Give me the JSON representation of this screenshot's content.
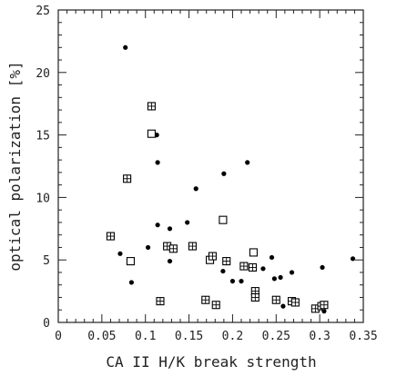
{
  "chart_data": {
    "type": "scatter",
    "xlabel": "CA II H/K break strength",
    "ylabel": "optical polarization [%]",
    "xlim": [
      0,
      0.35
    ],
    "ylim": [
      0,
      25
    ],
    "xticks": [
      "0",
      "0.05",
      "0.1",
      "0.15",
      "0.2",
      "0.25",
      "0.3",
      "0.35"
    ],
    "yticks": [
      "0",
      "5",
      "10",
      "15",
      "20",
      "25"
    ],
    "grid": false,
    "series": [
      {
        "marker": "filled-circle",
        "points": [
          [
            0.077,
            22.0
          ],
          [
            0.113,
            15.0
          ],
          [
            0.114,
            12.8
          ],
          [
            0.114,
            7.8
          ],
          [
            0.128,
            7.5
          ],
          [
            0.158,
            10.7
          ],
          [
            0.19,
            11.9
          ],
          [
            0.217,
            12.8
          ],
          [
            0.148,
            8.0
          ],
          [
            0.103,
            6.0
          ],
          [
            0.071,
            5.5
          ],
          [
            0.084,
            3.2
          ],
          [
            0.128,
            4.9
          ],
          [
            0.189,
            4.1
          ],
          [
            0.2,
            3.3
          ],
          [
            0.21,
            3.3
          ],
          [
            0.235,
            4.3
          ],
          [
            0.245,
            5.2
          ],
          [
            0.248,
            3.5
          ],
          [
            0.255,
            3.6
          ],
          [
            0.268,
            4.0
          ],
          [
            0.258,
            1.3
          ],
          [
            0.303,
            4.4
          ],
          [
            0.305,
            0.9
          ],
          [
            0.338,
            5.1
          ]
        ]
      },
      {
        "marker": "open-square",
        "points": [
          [
            0.107,
            15.1
          ],
          [
            0.083,
            4.9
          ],
          [
            0.189,
            8.2
          ],
          [
            0.224,
            5.6
          ],
          [
            0.174,
            5.0
          ]
        ]
      },
      {
        "marker": "crossed-square",
        "points": [
          [
            0.107,
            17.3
          ],
          [
            0.079,
            11.5
          ],
          [
            0.06,
            6.9
          ],
          [
            0.125,
            6.1
          ],
          [
            0.132,
            5.9
          ],
          [
            0.154,
            6.1
          ],
          [
            0.177,
            5.3
          ],
          [
            0.193,
            4.9
          ],
          [
            0.213,
            4.5
          ],
          [
            0.223,
            4.4
          ],
          [
            0.117,
            1.7
          ],
          [
            0.169,
            1.8
          ],
          [
            0.181,
            1.4
          ],
          [
            0.226,
            2.5
          ],
          [
            0.226,
            2.0
          ],
          [
            0.25,
            1.8
          ],
          [
            0.268,
            1.7
          ],
          [
            0.272,
            1.6
          ],
          [
            0.295,
            1.1
          ],
          [
            0.302,
            1.3
          ],
          [
            0.305,
            1.4
          ]
        ]
      }
    ]
  }
}
